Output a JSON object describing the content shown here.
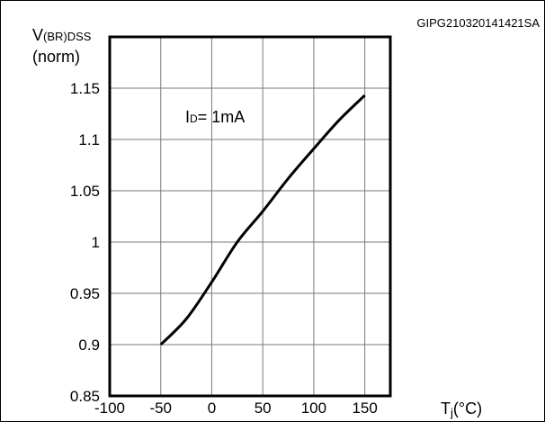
{
  "figure_code": "GIPG210320141421SA",
  "chart_data": {
    "type": "line",
    "ylabel": {
      "main": "V",
      "sub": "(BR)DSS",
      "line2": "(norm)"
    },
    "xlabel": {
      "main": "T",
      "sub": "j",
      "unit": "(°C)"
    },
    "xlim": [
      -100,
      175
    ],
    "ylim": [
      0.85,
      1.2
    ],
    "x_ticks": [
      -100,
      -50,
      0,
      50,
      100,
      150
    ],
    "y_ticks": [
      0.85,
      0.9,
      0.95,
      1,
      1.05,
      1.1,
      1.15
    ],
    "x_tick_labels": [
      "-100",
      "-50",
      "0",
      "50",
      "100",
      "150"
    ],
    "y_tick_labels": [
      "0.85",
      "0.9",
      "0.95",
      "1",
      "1.05",
      "1.1",
      "1.15"
    ],
    "grid": true,
    "annotation": {
      "main": "I",
      "sub": "D",
      "rest": "= 1mA"
    },
    "series": [
      {
        "x": [
          -50,
          -25,
          0,
          25,
          50,
          75,
          100,
          125,
          150
        ],
        "y": [
          0.9,
          0.925,
          0.961,
          1.0,
          1.03,
          1.062,
          1.091,
          1.119,
          1.143
        ]
      }
    ]
  }
}
